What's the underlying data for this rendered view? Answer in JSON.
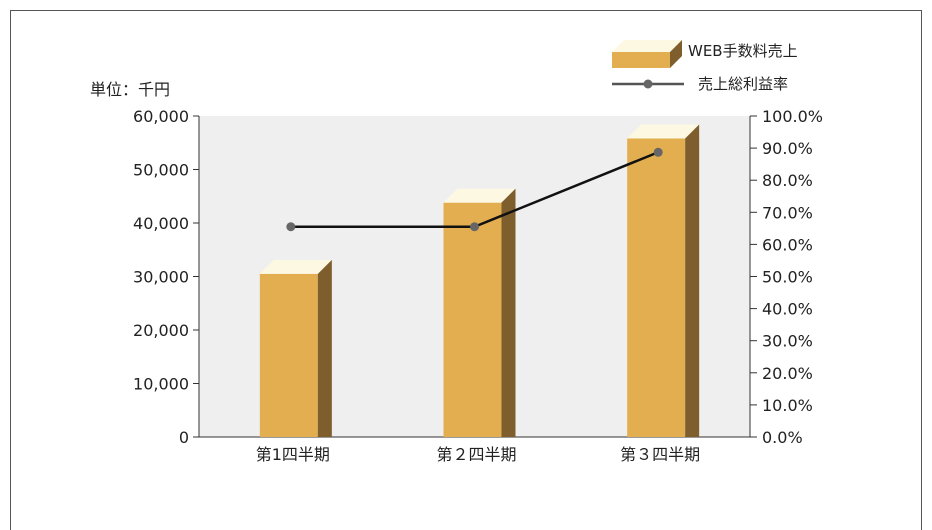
{
  "chart_data": {
    "type": "bar+line",
    "unit_label": "単位：千円",
    "categories": [
      "第1四半期",
      "第２四半期",
      "第３四半期"
    ],
    "series": [
      {
        "name": "WEB手数料売上",
        "type": "bar",
        "axis": "left",
        "values": [
          30500,
          43800,
          55800
        ]
      },
      {
        "name": "売上総利益率",
        "type": "line",
        "axis": "right",
        "values": [
          65.5,
          65.5,
          88.7
        ]
      }
    ],
    "y_left": {
      "range": [
        0,
        60000
      ],
      "ticks": [
        "0",
        "10,000",
        "20,000",
        "30,000",
        "40,000",
        "50,000",
        "60,000"
      ]
    },
    "y_right": {
      "range": [
        0,
        100
      ],
      "ticks": [
        "0.0%",
        "10.0%",
        "20.0%",
        "30.0%",
        "40.0%",
        "50.0%",
        "60.0%",
        "70.0%",
        "80.0%",
        "90.0%",
        "100.0%"
      ]
    },
    "legend_position": "top-right",
    "colors": {
      "bar_front": "#E3AE50",
      "bar_top": "#FDF8E1",
      "bar_side": "#7E5E2C",
      "line": "#111111",
      "marker": "#666666",
      "plot_bg": "#EFEFEF"
    }
  }
}
